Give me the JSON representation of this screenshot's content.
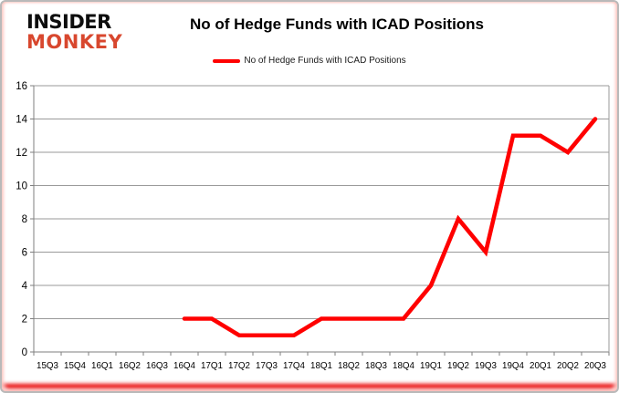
{
  "brand": {
    "line1": "INSIDER",
    "line2": "MONKEY"
  },
  "title": "No of Hedge Funds with ICAD Positions",
  "legend": {
    "label": "No of Hedge Funds with ICAD Positions"
  },
  "colors": {
    "line": "#FF0000",
    "logo_accent": "#D8472E",
    "grid": "#9A9A9A",
    "axis": "#7F7F7F",
    "tick_text": "#000000",
    "frame_red": "#E80000"
  },
  "chart_data": {
    "type": "line",
    "title": "No of Hedge Funds with ICAD Positions",
    "categories": [
      "15Q3",
      "15Q4",
      "16Q1",
      "16Q2",
      "16Q3",
      "16Q4",
      "17Q1",
      "17Q2",
      "17Q3",
      "17Q4",
      "18Q1",
      "18Q2",
      "18Q3",
      "18Q4",
      "19Q1",
      "19Q2",
      "19Q3",
      "19Q4",
      "20Q1",
      "20Q2",
      "20Q3"
    ],
    "series": [
      {
        "name": "No of Hedge Funds with ICAD Positions",
        "color": "#FF0000",
        "values": [
          null,
          null,
          null,
          null,
          null,
          2,
          2,
          1,
          1,
          1,
          2,
          2,
          2,
          2,
          4,
          8,
          6,
          13,
          13,
          12,
          14
        ]
      }
    ],
    "xlabel": "",
    "ylabel": "",
    "ylim": [
      0,
      16
    ],
    "ytick_step": 2,
    "grid": "horizontal",
    "legend_position": "top-center"
  }
}
